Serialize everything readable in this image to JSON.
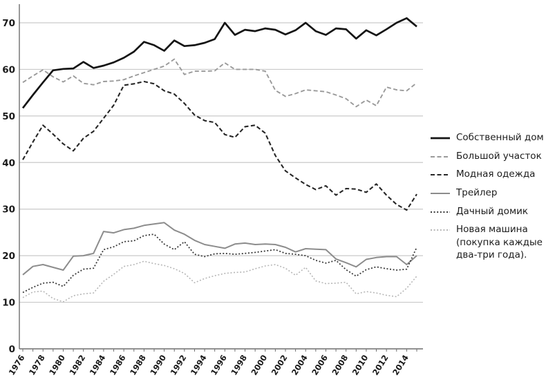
{
  "chart_data": {
    "type": "line",
    "title": "",
    "xlabel": "",
    "ylabel": "",
    "x": [
      1976,
      1977,
      1978,
      1979,
      1980,
      1981,
      1982,
      1983,
      1984,
      1985,
      1986,
      1987,
      1988,
      1989,
      1990,
      1991,
      1992,
      1993,
      1994,
      1995,
      1996,
      1997,
      1998,
      1999,
      2000,
      2001,
      2002,
      2003,
      2004,
      2005,
      2006,
      2007,
      2008,
      2009,
      2010,
      2011,
      2012,
      2013,
      2014,
      2015
    ],
    "x_tick_labels": [
      "1976",
      "1978",
      "1980",
      "1982",
      "1984",
      "1986",
      "1988",
      "1990",
      "1992",
      "1994",
      "1996",
      "1998",
      "2000",
      "2002",
      "2004",
      "2006",
      "2008",
      "2010",
      "2012",
      "2014"
    ],
    "yticks": [
      0,
      10,
      20,
      30,
      40,
      50,
      60,
      70
    ],
    "ylim": [
      0,
      75
    ],
    "grid": "horizontal",
    "legend_position": "right",
    "axis_color": "#6e6e6e",
    "grid_color": "#c9c9c9",
    "series": [
      {
        "name": "Собственный дом",
        "color": "#141414",
        "width": 2.7,
        "dash": "",
        "values": [
          51.7,
          54.5,
          57.2,
          59.8,
          60.1,
          60.2,
          61.6,
          60.3,
          60.8,
          61.5,
          62.5,
          63.8,
          65.9,
          65.2,
          64.0,
          66.2,
          65.0,
          65.2,
          65.7,
          66.5,
          70.0,
          67.4,
          68.5,
          68.2,
          68.8,
          68.5,
          67.5,
          68.4,
          70.0,
          68.2,
          67.4,
          68.8,
          68.6,
          66.6,
          68.4,
          67.3,
          68.6,
          70.0,
          71.0,
          69.2
        ]
      },
      {
        "name": "Большой участок",
        "color": "#9a9a9a",
        "width": 1.9,
        "dash": "6,3.5",
        "values": [
          57.2,
          58.6,
          59.9,
          58.4,
          57.3,
          58.6,
          57.0,
          56.7,
          57.4,
          57.5,
          57.8,
          58.6,
          59.3,
          60.0,
          60.7,
          62.2,
          58.9,
          59.6,
          59.6,
          59.7,
          61.4,
          60.0,
          60.0,
          60.0,
          59.6,
          55.5,
          54.2,
          54.8,
          55.6,
          55.4,
          55.2,
          54.5,
          53.7,
          52.0,
          53.4,
          52.2,
          56.2,
          55.6,
          55.4,
          57.1
        ]
      },
      {
        "name": "Модная одежда",
        "color": "#262626",
        "width": 2.1,
        "dash": "6,3.5",
        "values": [
          40.6,
          44.4,
          48.0,
          46.1,
          44.0,
          42.5,
          45.2,
          46.7,
          49.5,
          52.3,
          56.6,
          56.9,
          57.4,
          56.9,
          55.4,
          54.7,
          52.7,
          50.2,
          49.0,
          48.6,
          46.0,
          45.4,
          47.7,
          48.0,
          46.3,
          41.5,
          38.2,
          36.7,
          35.3,
          34.2,
          35.0,
          33.0,
          34.4,
          34.3,
          33.6,
          35.4,
          33.0,
          31.0,
          29.8,
          33.2
        ]
      },
      {
        "name": "Трейлер",
        "color": "#8c8c8c",
        "width": 2.0,
        "dash": "",
        "values": [
          15.9,
          17.7,
          18.1,
          17.5,
          16.9,
          19.9,
          20.0,
          20.5,
          25.2,
          24.9,
          25.6,
          25.9,
          26.5,
          26.8,
          27.1,
          25.5,
          24.6,
          23.3,
          22.4,
          22.0,
          21.6,
          22.5,
          22.7,
          22.4,
          22.5,
          22.4,
          21.8,
          20.8,
          21.5,
          21.4,
          21.3,
          19.3,
          18.5,
          17.6,
          19.2,
          19.6,
          19.8,
          19.8,
          18.1,
          20.0
        ]
      },
      {
        "name": "Дачный домик",
        "color": "#3a3a3a",
        "width": 1.8,
        "dash": "2,2.6",
        "values": [
          12.1,
          13.2,
          14.1,
          14.3,
          13.4,
          15.8,
          17.1,
          17.3,
          21.3,
          21.9,
          23.0,
          23.2,
          24.3,
          24.6,
          22.5,
          21.3,
          23.0,
          20.3,
          19.8,
          20.4,
          20.5,
          20.3,
          20.5,
          20.7,
          21.0,
          21.3,
          20.5,
          20.3,
          20.0,
          19.0,
          18.4,
          19.0,
          17.0,
          15.6,
          17.0,
          17.6,
          17.2,
          16.9,
          17.1,
          21.8
        ]
      },
      {
        "name": "Новая машина (покупка каждые два-три года).",
        "color": "#b6b6b6",
        "width": 1.6,
        "dash": "2,2.6",
        "values": [
          11.0,
          12.2,
          12.4,
          10.8,
          10.1,
          11.4,
          11.8,
          12.0,
          14.5,
          16.0,
          17.7,
          18.1,
          18.8,
          18.3,
          17.9,
          17.2,
          16.2,
          14.2,
          15.1,
          15.7,
          16.2,
          16.4,
          16.5,
          17.2,
          17.8,
          18.1,
          17.3,
          15.8,
          17.5,
          14.6,
          14.0,
          14.1,
          14.3,
          11.8,
          12.3,
          12.0,
          11.5,
          11.2,
          13.0,
          15.6
        ]
      }
    ]
  }
}
